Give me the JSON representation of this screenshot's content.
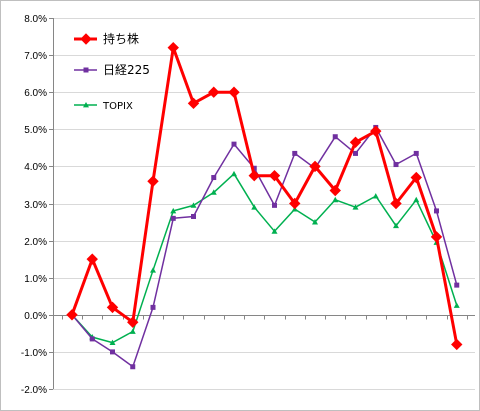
{
  "chart_data": {
    "type": "line",
    "x": [
      1,
      2,
      3,
      4,
      5,
      6,
      7,
      8,
      9,
      10,
      11,
      12,
      13,
      14,
      15,
      16,
      17,
      18,
      19,
      20
    ],
    "ylim": [
      -2.0,
      8.0
    ],
    "yticks": [
      "8.0%",
      "7.0%",
      "6.0%",
      "5.0%",
      "4.0%",
      "3.0%",
      "2.0%",
      "1.0%",
      "0.0%",
      "-1.0%",
      "-2.0%"
    ],
    "grid": "horizontal",
    "legend_position": "top-left",
    "series": [
      {
        "name": "持ち株",
        "color": "#ff0000",
        "marker": "diamond",
        "values": [
          0.0,
          1.5,
          0.2,
          -0.2,
          3.6,
          7.2,
          5.7,
          6.0,
          6.0,
          3.75,
          3.75,
          3.0,
          4.0,
          3.35,
          4.65,
          4.95,
          3.0,
          3.7,
          2.1,
          -0.8
        ]
      },
      {
        "name": "日経225",
        "color": "#7030a0",
        "marker": "square",
        "values": [
          0.0,
          -0.65,
          -1.0,
          -1.4,
          0.2,
          2.6,
          2.65,
          3.7,
          4.6,
          3.95,
          2.95,
          4.35,
          3.95,
          4.8,
          4.35,
          5.05,
          4.05,
          4.35,
          2.8,
          0.8
        ]
      },
      {
        "name": "TOPIX",
        "color": "#00b050",
        "marker": "triangle",
        "values": [
          0.0,
          -0.6,
          -0.75,
          -0.45,
          1.2,
          2.8,
          2.95,
          3.3,
          3.8,
          2.9,
          2.25,
          2.85,
          2.5,
          3.1,
          2.9,
          3.2,
          2.4,
          3.1,
          1.95,
          0.25
        ]
      }
    ]
  }
}
